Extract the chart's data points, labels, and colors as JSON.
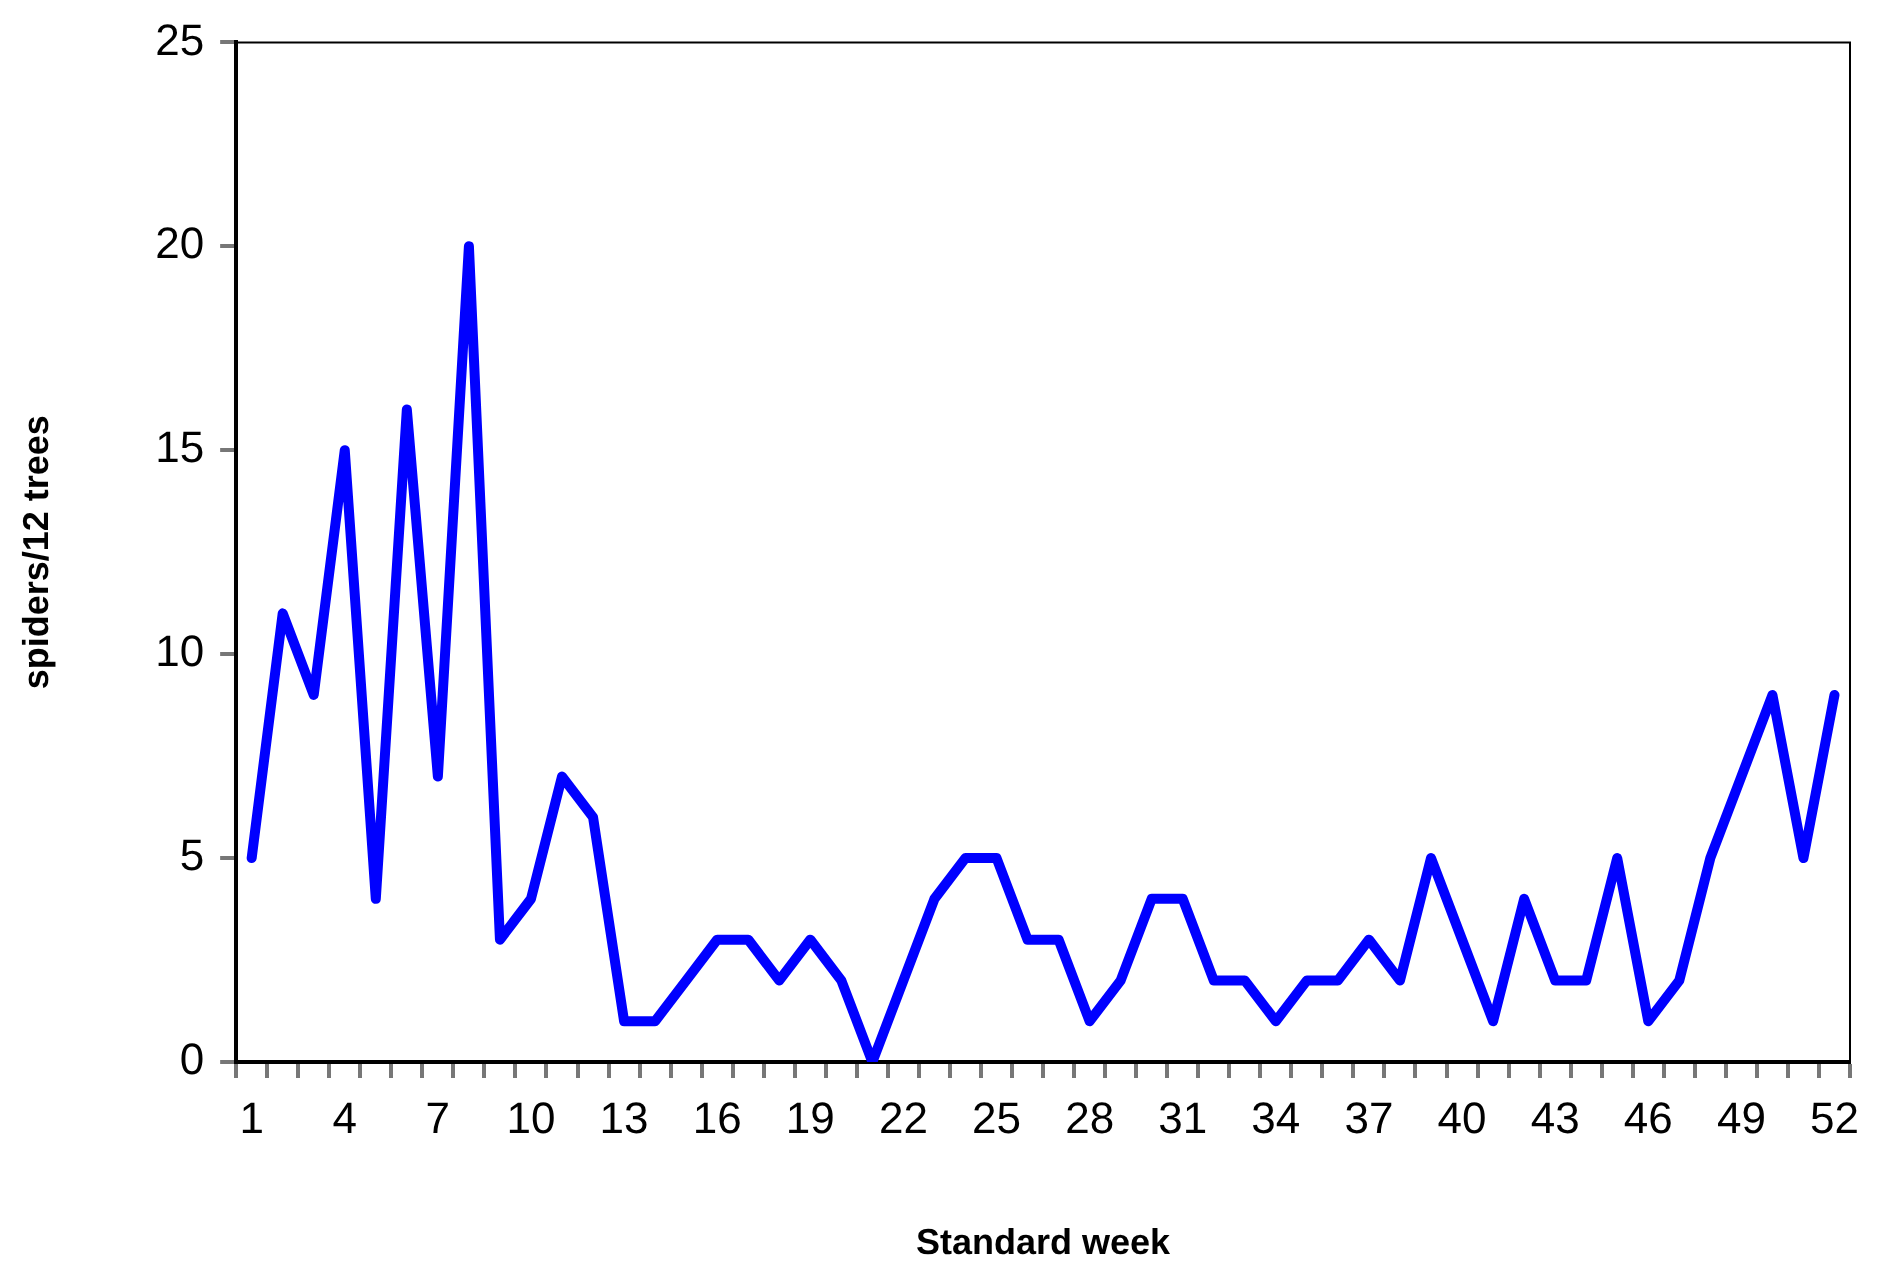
{
  "chart_data": {
    "type": "line",
    "xlabel": "Standard week",
    "ylabel": "spiders/12 trees",
    "categories": [
      "1",
      null,
      null,
      "4",
      null,
      null,
      "7",
      null,
      null,
      "10",
      null,
      null,
      "13",
      null,
      null,
      "16",
      null,
      null,
      "19",
      null,
      null,
      "22",
      null,
      null,
      "25",
      null,
      null,
      "28",
      null,
      null,
      "31",
      null,
      null,
      "34",
      null,
      null,
      "37",
      null,
      null,
      "40",
      null,
      null,
      "43",
      null,
      null,
      "46",
      null,
      null,
      "49",
      null,
      null,
      "52"
    ],
    "series": [
      {
        "color": "#0000ff",
        "values": [
          5,
          11,
          9,
          15,
          4,
          16,
          7,
          20,
          3,
          4,
          7,
          6,
          1,
          1,
          2,
          3,
          3,
          2,
          3,
          2,
          0,
          2,
          4,
          5,
          5,
          3,
          3,
          1,
          2,
          4,
          4,
          2,
          2,
          1,
          2,
          2,
          3,
          2,
          5,
          3,
          1,
          4,
          2,
          2,
          5,
          1,
          2,
          5,
          7,
          9,
          5,
          9
        ]
      }
    ],
    "ylim": [
      0,
      25
    ],
    "yticks": [
      0,
      5,
      10,
      15,
      20,
      25
    ],
    "grid": false,
    "legend": false,
    "marker": "none",
    "line_style": "solid"
  }
}
